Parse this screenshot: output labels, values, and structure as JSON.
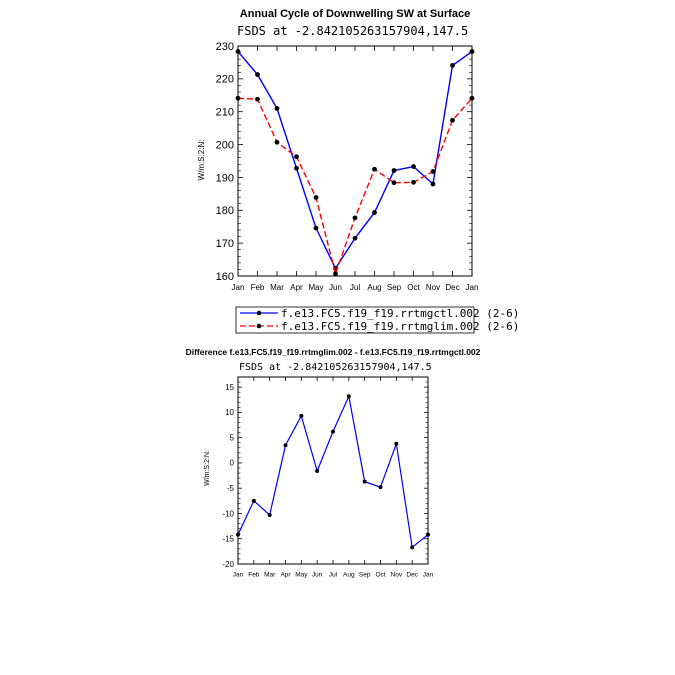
{
  "chart_data": [
    {
      "type": "line",
      "title": "Annual Cycle of Downwelling SW at Surface",
      "subtitle": "FSDS at -2.842105263157904,147.5",
      "ylabel": "W/m:S:2:N:",
      "xlabel": "",
      "categories": [
        "Jan",
        "Feb",
        "Mar",
        "Apr",
        "May",
        "Jun",
        "Jul",
        "Aug",
        "Sep",
        "Oct",
        "Nov",
        "Dec",
        "Jan"
      ],
      "ylim": [
        160,
        230
      ],
      "yticks": [
        160,
        170,
        180,
        190,
        200,
        210,
        220,
        230
      ],
      "series": [
        {
          "name": "f.e13.FC5.f19_f19.rrtmgctl.002 (2-6)",
          "color": "#0000ff",
          "dash": "solid",
          "values": [
            228.3,
            221.3,
            211.0,
            192.8,
            174.6,
            162.3,
            171.5,
            179.3,
            192.1,
            193.3,
            188.0,
            224.1,
            228.3
          ]
        },
        {
          "name": "f.e13.FC5.f19_f19.rrtmglim.002 (2-6)",
          "color": "#ff0000",
          "dash": "dashed",
          "values": [
            214.1,
            213.8,
            200.7,
            196.3,
            183.9,
            160.7,
            177.7,
            192.5,
            188.4,
            188.5,
            191.8,
            207.4,
            214.1
          ]
        }
      ],
      "legend": "below"
    },
    {
      "type": "line",
      "title": "Difference f.e13.FC5.f19_f19.rrtmglim.002 - f.e13.FC5.f19_f19.rrtmgctl.002",
      "subtitle": "FSDS at -2.842105263157904,147.5",
      "ylabel": "W/m:S:2:N:",
      "xlabel": "",
      "categories": [
        "Jan",
        "Feb",
        "Mar",
        "Apr",
        "May",
        "Jun",
        "Jul",
        "Aug",
        "Sep",
        "Oct",
        "Nov",
        "Dec",
        "Jan"
      ],
      "ylim": [
        -20,
        17
      ],
      "yticks": [
        -20,
        -15,
        -10,
        -5,
        0,
        5,
        10,
        15
      ],
      "series": [
        {
          "name": "difference",
          "color": "#0000ff",
          "dash": "solid",
          "values": [
            -14.2,
            -7.5,
            -10.3,
            3.5,
            9.3,
            -1.6,
            6.2,
            13.2,
            -3.7,
            -4.8,
            3.8,
            -16.7,
            -14.2
          ]
        }
      ]
    }
  ]
}
